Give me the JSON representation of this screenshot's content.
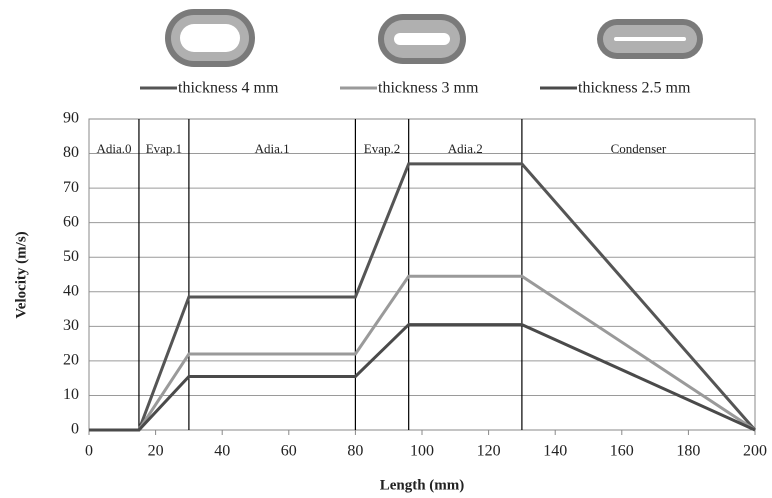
{
  "chart_data": {
    "type": "line",
    "x_label": "Length (mm)",
    "y_label": "Velocity (m/s)",
    "x": [
      0,
      15,
      30,
      80,
      96,
      130,
      200
    ],
    "series": [
      {
        "name": "thickness 4 mm",
        "color": "#555555",
        "values": [
          0,
          0,
          38.5,
          38.5,
          77,
          77,
          0
        ]
      },
      {
        "name": "thickness 3 mm",
        "color": "#9a9a9a",
        "values": [
          0,
          0,
          22,
          22,
          44.5,
          44.5,
          0
        ]
      },
      {
        "name": "thickness 2.5 mm",
        "color": "#4a4a4a",
        "values": [
          0,
          0,
          15.5,
          15.5,
          30.5,
          30.5,
          0
        ]
      }
    ],
    "sections": [
      {
        "label": "Adia.0",
        "from": 0,
        "to": 15
      },
      {
        "label": "Evap.1",
        "from": 15,
        "to": 30
      },
      {
        "label": "Adia.1",
        "from": 30,
        "to": 80
      },
      {
        "label": "Evap.2",
        "from": 80,
        "to": 96
      },
      {
        "label": "Adia.2",
        "from": 96,
        "to": 130
      },
      {
        "label": "Condenser",
        "from": 130,
        "to": 200
      }
    ],
    "xlim": [
      0,
      200
    ],
    "xticks": [
      0,
      20,
      40,
      60,
      80,
      100,
      120,
      140,
      160,
      180,
      200
    ],
    "ylim": [
      0,
      90
    ],
    "yticks": [
      0,
      10,
      20,
      30,
      40,
      50,
      60,
      70,
      80,
      90
    ],
    "grid": true,
    "legend": "top"
  }
}
